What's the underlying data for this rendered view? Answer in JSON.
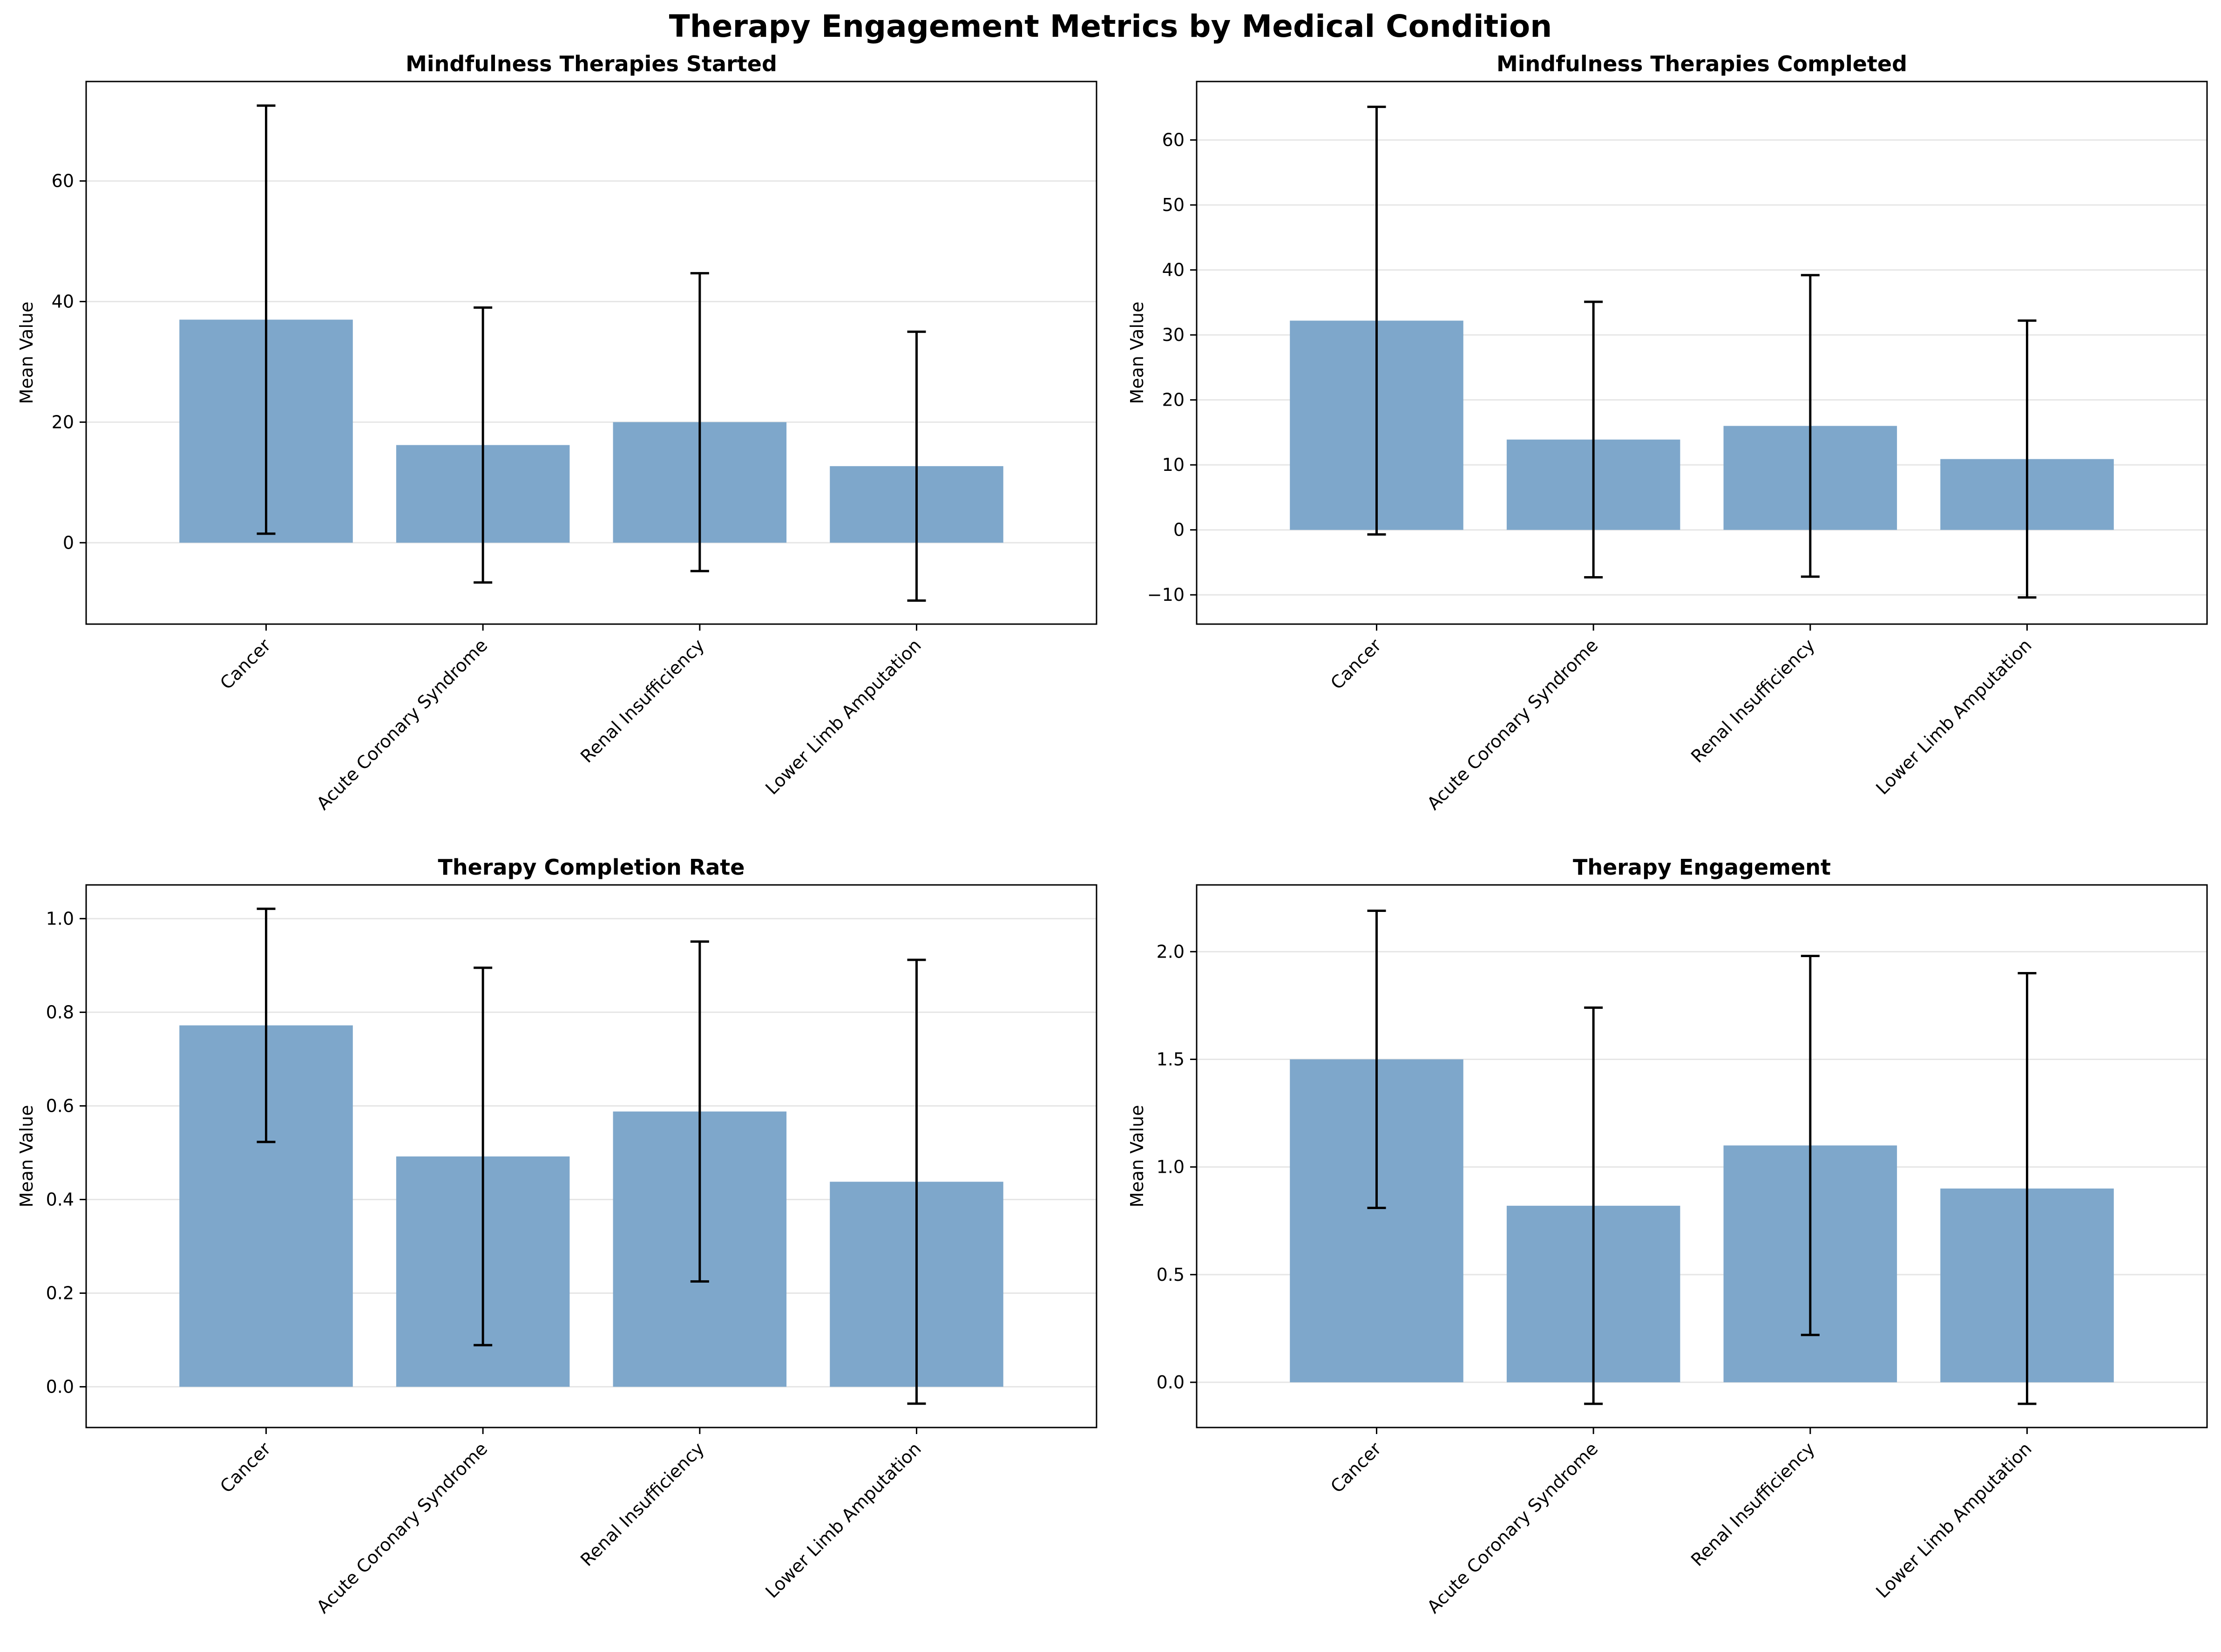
{
  "figure": {
    "title": "Therapy Engagement Metrics by Medical Condition"
  },
  "style": {
    "bar_color": "#7ea7cb",
    "grid_color": "#e6e6e6",
    "error_color": "#000000"
  },
  "chart_data": [
    {
      "type": "bar",
      "title": "Mindfulness Therapies Started",
      "xlabel": "",
      "ylabel": "Mean Value",
      "categories": [
        "Cancer",
        "Acute Coronary Syndrome",
        "Renal Insufficiency",
        "Lower Limb Amputation"
      ],
      "values": [
        37.0,
        16.2,
        20.0,
        12.7
      ],
      "errors": [
        35.5,
        22.8,
        24.7,
        22.3
      ],
      "ylim": [
        -13.5,
        76.5
      ],
      "yticks": [
        0,
        20,
        40,
        60
      ],
      "ytick_labels": [
        "0",
        "20",
        "40",
        "60"
      ],
      "grid": true,
      "legend": "none"
    },
    {
      "type": "bar",
      "title": "Mindfulness Therapies Completed",
      "xlabel": "",
      "ylabel": "Mean Value",
      "categories": [
        "Cancer",
        "Acute Coronary Syndrome",
        "Renal Insufficiency",
        "Lower Limb Amputation"
      ],
      "values": [
        32.2,
        13.9,
        16.0,
        10.9
      ],
      "errors": [
        32.9,
        21.2,
        23.2,
        21.3
      ],
      "ylim": [
        -14.5,
        69.0
      ],
      "yticks": [
        -10,
        0,
        10,
        20,
        30,
        40,
        50,
        60
      ],
      "ytick_labels": [
        "−10",
        "0",
        "10",
        "20",
        "30",
        "40",
        "50",
        "60"
      ],
      "grid": true,
      "legend": "none"
    },
    {
      "type": "bar",
      "title": "Therapy Completion Rate",
      "xlabel": "",
      "ylabel": "Mean Value",
      "categories": [
        "Cancer",
        "Acute Coronary Syndrome",
        "Renal Insufficiency",
        "Lower Limb Amputation"
      ],
      "values": [
        0.772,
        0.492,
        0.588,
        0.438
      ],
      "errors": [
        0.249,
        0.403,
        0.363,
        0.474
      ],
      "ylim": [
        -0.087,
        1.072
      ],
      "yticks": [
        0.0,
        0.2,
        0.4,
        0.6,
        0.8,
        1.0
      ],
      "ytick_labels": [
        "0.0",
        "0.2",
        "0.4",
        "0.6",
        "0.8",
        "1.0"
      ],
      "grid": true,
      "legend": "none"
    },
    {
      "type": "bar",
      "title": "Therapy Engagement",
      "xlabel": "",
      "ylabel": "Mean Value",
      "categories": [
        "Cancer",
        "Acute Coronary Syndrome",
        "Renal Insufficiency",
        "Lower Limb Amputation"
      ],
      "values": [
        1.5,
        0.82,
        1.1,
        0.9
      ],
      "errors": [
        0.69,
        0.92,
        0.88,
        1.0
      ],
      "ylim": [
        -0.21,
        2.31
      ],
      "yticks": [
        0.0,
        0.5,
        1.0,
        1.5,
        2.0
      ],
      "ytick_labels": [
        "0.0",
        "0.5",
        "1.0",
        "1.5",
        "2.0"
      ],
      "grid": true,
      "legend": "none"
    }
  ]
}
